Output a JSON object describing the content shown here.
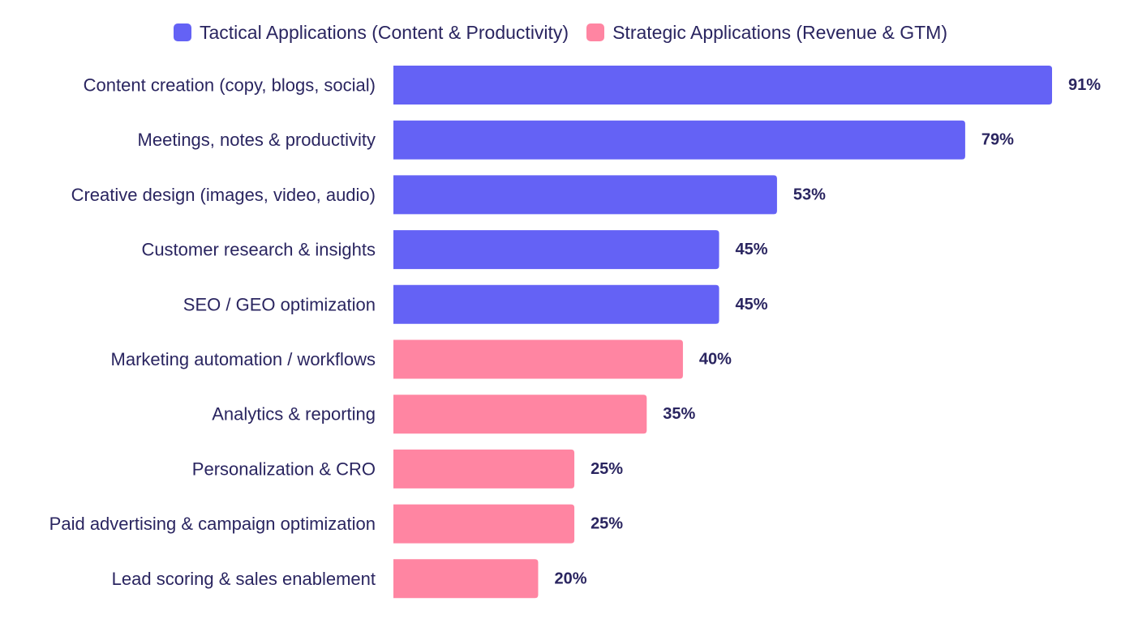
{
  "chart_data": {
    "type": "bar",
    "orientation": "horizontal",
    "title": "",
    "xlabel": "",
    "ylabel": "",
    "xlim": [
      0,
      100
    ],
    "grid": false,
    "legend_position": "top-center",
    "series": [
      {
        "name": "Tactical Applications (Content & Productivity)",
        "color": "#6462f5"
      },
      {
        "name": "Strategic Applications (Revenue & GTM)",
        "color": "#ff85a2"
      }
    ],
    "bars": [
      {
        "label": "Content creation (copy, blogs, social)",
        "value": 91,
        "display": "91%",
        "series": 0
      },
      {
        "label": "Meetings, notes & productivity",
        "value": 79,
        "display": "79%",
        "series": 0
      },
      {
        "label": "Creative design (images, video, audio)",
        "value": 53,
        "display": "53%",
        "series": 0
      },
      {
        "label": "Customer research & insights",
        "value": 45,
        "display": "45%",
        "series": 0
      },
      {
        "label": "SEO / GEO optimization",
        "value": 45,
        "display": "45%",
        "series": 0
      },
      {
        "label": "Marketing automation / workflows",
        "value": 40,
        "display": "40%",
        "series": 1
      },
      {
        "label": "Analytics & reporting",
        "value": 35,
        "display": "35%",
        "series": 1
      },
      {
        "label": "Personalization & CRO",
        "value": 25,
        "display": "25%",
        "series": 1
      },
      {
        "label": "Paid advertising & campaign optimization",
        "value": 25,
        "display": "25%",
        "series": 1
      },
      {
        "label": "Lead scoring & sales enablement",
        "value": 20,
        "display": "20%",
        "series": 1
      }
    ]
  }
}
